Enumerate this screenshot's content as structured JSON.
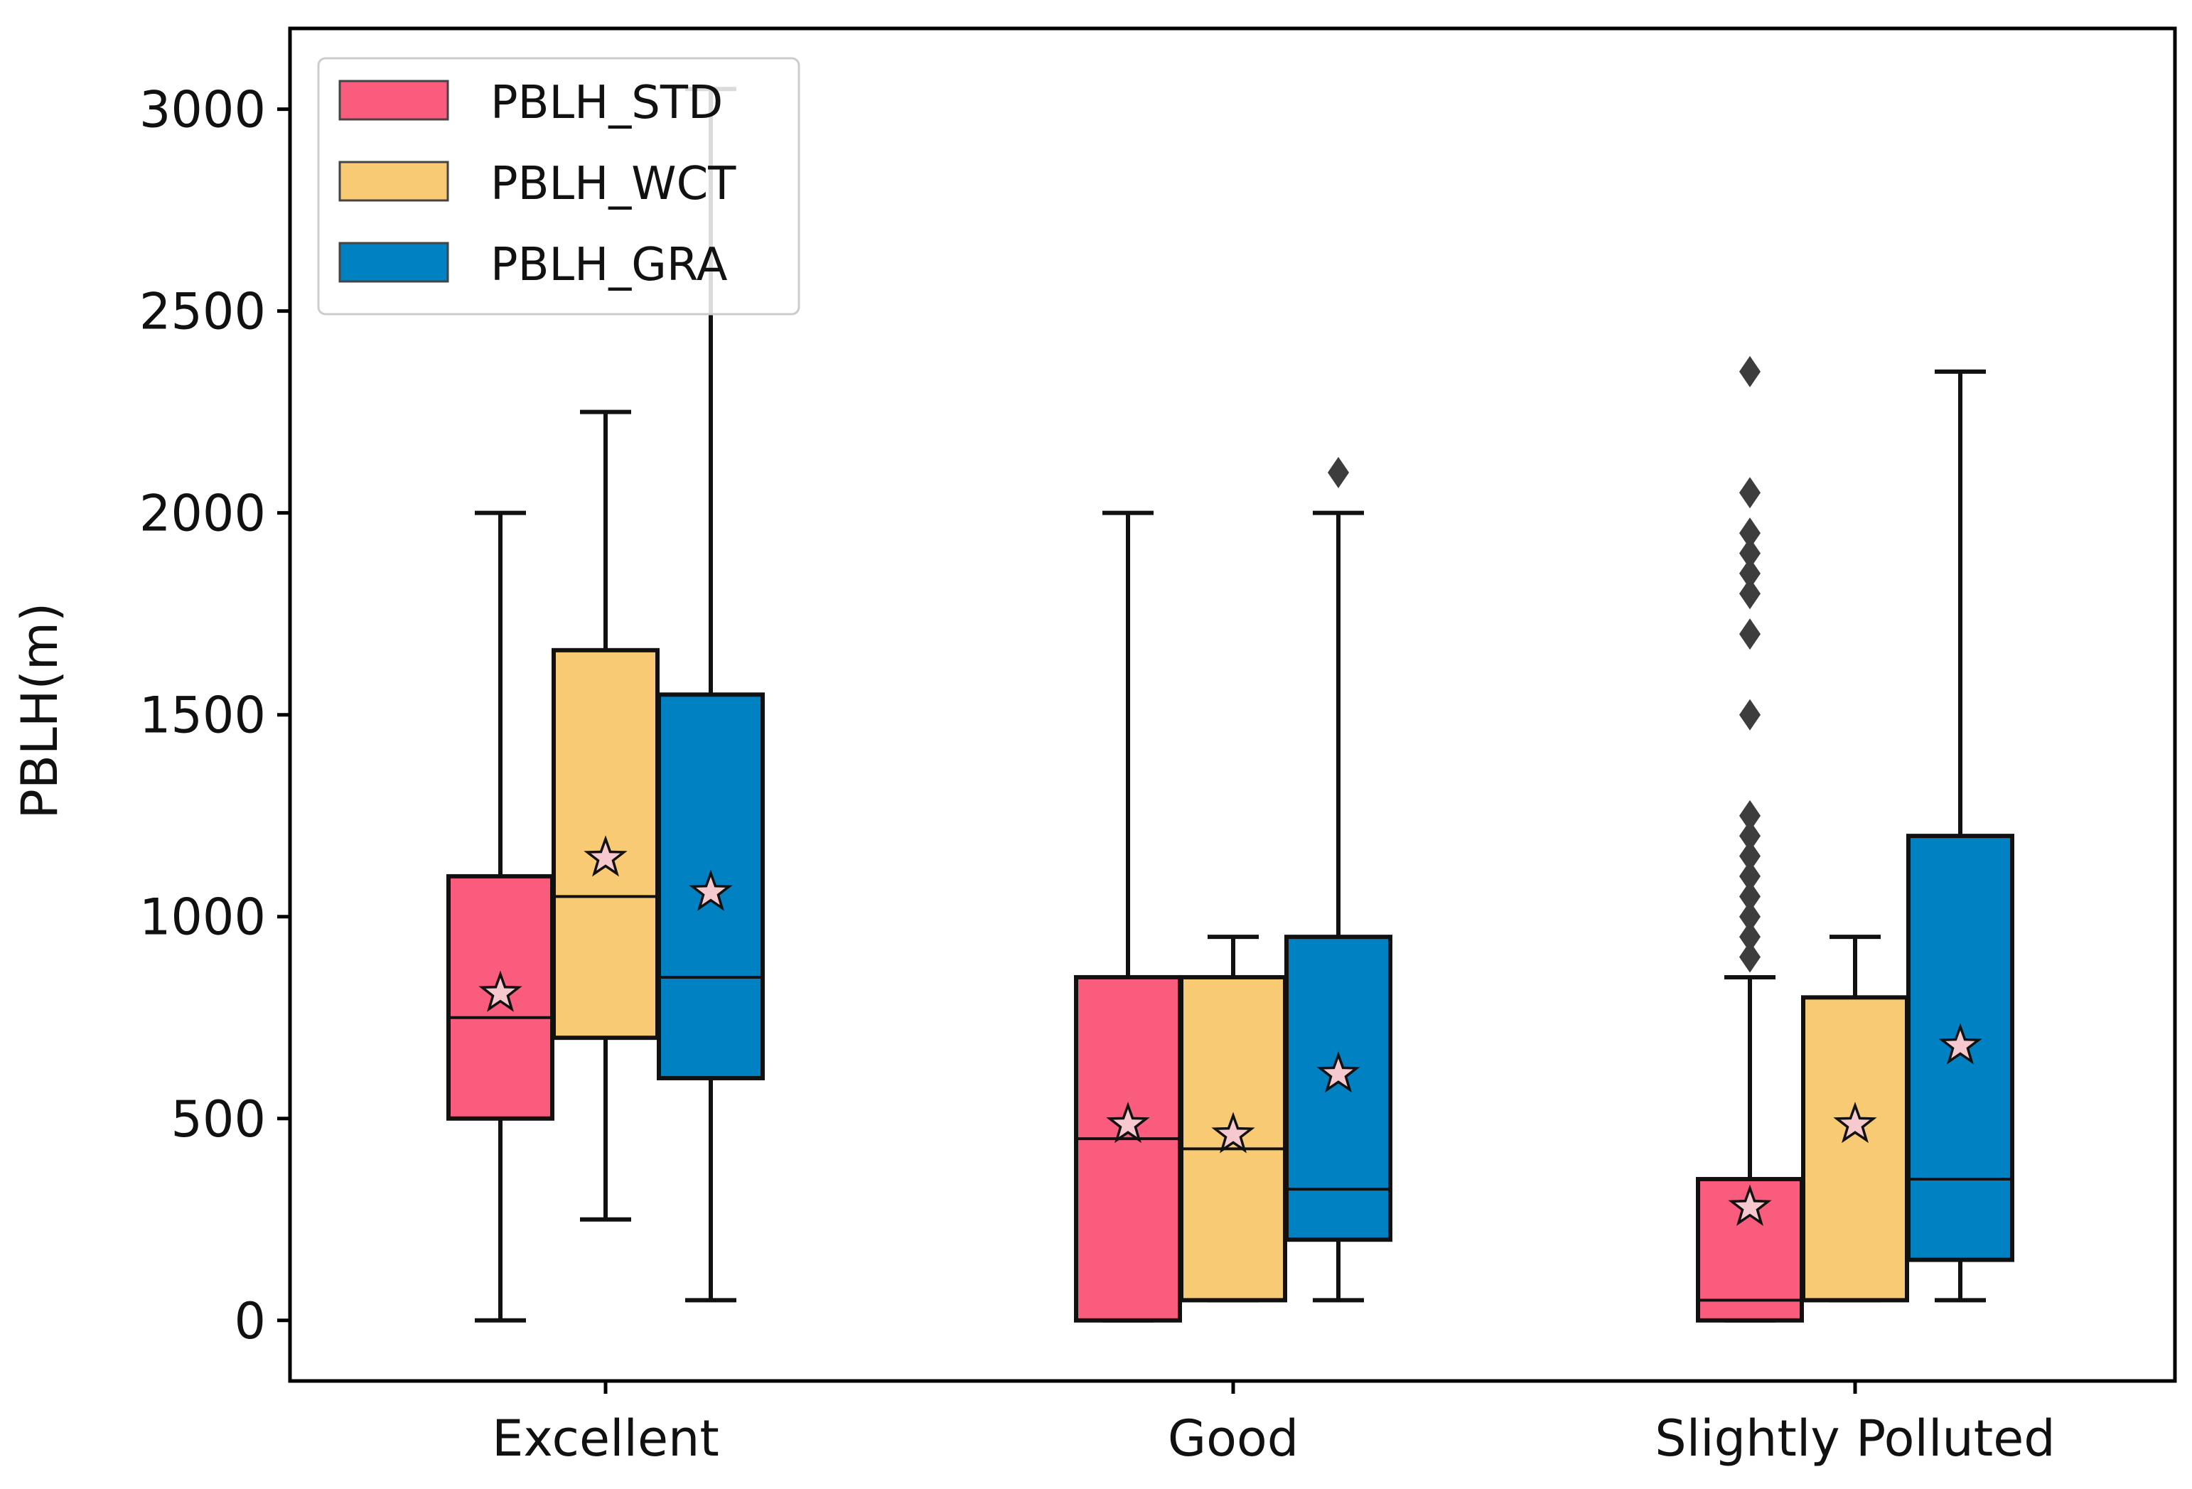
{
  "chart_data": {
    "type": "box",
    "title": "",
    "xlabel": "",
    "ylabel": "PBLH(m)",
    "ylim": [
      -150,
      3200
    ],
    "yticks": [
      0,
      500,
      1000,
      1500,
      2000,
      2500,
      3000
    ],
    "categories": [
      "Excellent",
      "Good",
      "Slightly Polluted"
    ],
    "legend_position": "top-left",
    "mean_marker": "star",
    "outlier_marker": "diamond",
    "series": [
      {
        "name": "PBLH_STD",
        "color": "#F95C7C",
        "boxes": [
          {
            "whisker_low": 0,
            "q1": 500,
            "median": 750,
            "q3": 1100,
            "whisker_high": 2000,
            "mean": 810,
            "outliers": []
          },
          {
            "whisker_low": 0,
            "q1": 0,
            "median": 450,
            "q3": 850,
            "whisker_high": 2000,
            "mean": 485,
            "outliers": []
          },
          {
            "whisker_low": 0,
            "q1": 0,
            "median": 50,
            "q3": 350,
            "whisker_high": 850,
            "mean": 280,
            "outliers": [
              900,
              950,
              1000,
              1050,
              1100,
              1150,
              1200,
              1250,
              1500,
              1700,
              1800,
              1850,
              1900,
              1950,
              2050,
              2350
            ]
          }
        ]
      },
      {
        "name": "PBLH_WCT",
        "color": "#F8CA74",
        "boxes": [
          {
            "whisker_low": 250,
            "q1": 700,
            "median": 1050,
            "q3": 1660,
            "whisker_high": 2250,
            "mean": 1145,
            "outliers": []
          },
          {
            "whisker_low": 50,
            "q1": 50,
            "median": 425,
            "q3": 850,
            "whisker_high": 950,
            "mean": 460,
            "outliers": []
          },
          {
            "whisker_low": 50,
            "q1": 50,
            "median": 50,
            "q3": 800,
            "whisker_high": 950,
            "mean": 485,
            "outliers": []
          }
        ]
      },
      {
        "name": "PBLH_GRA",
        "color": "#0081C2",
        "boxes": [
          {
            "whisker_low": 50,
            "q1": 600,
            "median": 850,
            "q3": 1550,
            "whisker_high": 3050,
            "mean": 1060,
            "outliers": []
          },
          {
            "whisker_low": 50,
            "q1": 200,
            "median": 325,
            "q3": 950,
            "whisker_high": 2000,
            "mean": 610,
            "outliers": [
              2100
            ]
          },
          {
            "whisker_low": 50,
            "q1": 150,
            "median": 350,
            "q3": 1200,
            "whisker_high": 2350,
            "mean": 680,
            "outliers": []
          }
        ]
      }
    ]
  }
}
